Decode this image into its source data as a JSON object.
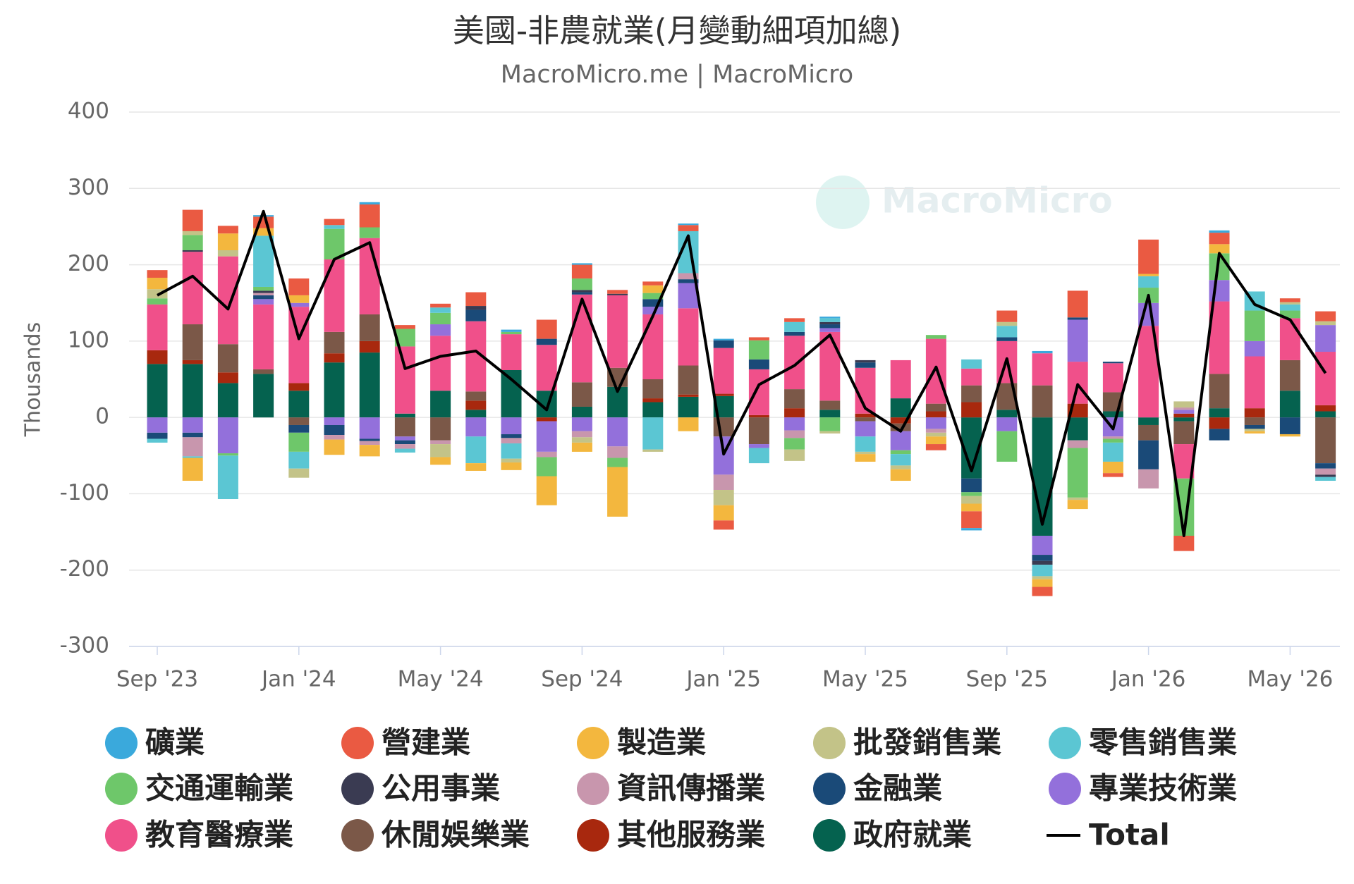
{
  "chart_data": {
    "type": "stacked-bar",
    "title": "美國-非農就業(月變動細項加總)",
    "subtitle": "MacroMicro.me | MacroMicro",
    "watermark": "MacroMicro",
    "y_axis_label": "Thousands",
    "categories": [
      "Sep '23",
      null,
      null,
      null,
      "Jan '24",
      null,
      null,
      null,
      "May '24",
      null,
      null,
      null,
      "Sep '24",
      null,
      null,
      null,
      "Jan '25",
      null,
      null,
      null,
      "May '25",
      null,
      null,
      null,
      "Sep '25",
      null,
      null,
      null,
      "Jan '26",
      null,
      null,
      null,
      "May '26",
      null
    ],
    "ylim": [
      -300,
      400
    ],
    "yticks": [
      -300,
      -200,
      -100,
      0,
      100,
      200,
      300,
      400
    ],
    "grid": true,
    "series": [
      {
        "name": "礦業",
        "color": "#3aa9dc",
        "values": [
          0,
          0,
          0,
          2,
          0,
          0,
          3,
          0,
          0,
          0,
          3,
          0,
          2,
          0,
          0,
          2,
          2,
          0,
          0,
          2,
          0,
          0,
          0,
          -3,
          0,
          3,
          0,
          0,
          0,
          0,
          3,
          0,
          0,
          0
        ]
      },
      {
        "name": "營建業",
        "color": "#ea5a42",
        "values": [
          10,
          28,
          10,
          15,
          22,
          8,
          30,
          5,
          5,
          18,
          0,
          25,
          18,
          5,
          5,
          8,
          -12,
          4,
          5,
          0,
          0,
          0,
          -8,
          -22,
          15,
          -12,
          35,
          -5,
          45,
          -20,
          15,
          0,
          5,
          13
        ]
      },
      {
        "name": "製造業",
        "color": "#f3b73e",
        "values": [
          15,
          -30,
          22,
          10,
          10,
          -20,
          -15,
          0,
          -10,
          -10,
          -10,
          -38,
          -12,
          -65,
          10,
          -18,
          -20,
          0,
          0,
          0,
          -10,
          -15,
          -10,
          -10,
          0,
          -10,
          -12,
          -15,
          3,
          0,
          12,
          -3,
          -3,
          0
        ]
      },
      {
        "name": "批發銷售業",
        "color": "#c3c388",
        "values": [
          12,
          5,
          8,
          0,
          -12,
          0,
          0,
          0,
          -17,
          0,
          -5,
          0,
          -7,
          0,
          -3,
          0,
          -20,
          0,
          -15,
          -3,
          -3,
          -5,
          -5,
          -10,
          5,
          -4,
          -3,
          0,
          0,
          8,
          0,
          -3,
          3,
          5
        ]
      },
      {
        "name": "零售銷售業",
        "color": "#5bc6d3",
        "values": [
          -5,
          -2,
          -57,
          67,
          -22,
          5,
          0,
          -5,
          7,
          -35,
          -20,
          0,
          0,
          0,
          -42,
          55,
          0,
          -20,
          13,
          5,
          -20,
          -15,
          0,
          12,
          15,
          -15,
          0,
          -25,
          15,
          0,
          0,
          25,
          8,
          -5
        ]
      },
      {
        "name": "交通運輸業",
        "color": "#6ec76a",
        "values": [
          8,
          20,
          -3,
          5,
          -25,
          40,
          14,
          23,
          15,
          0,
          3,
          -25,
          15,
          -12,
          8,
          0,
          0,
          25,
          -15,
          -18,
          0,
          -5,
          5,
          -5,
          -40,
          0,
          -65,
          -5,
          20,
          -75,
          35,
          40,
          10,
          0
        ]
      },
      {
        "name": "公用事業",
        "color": "#3a3b52",
        "values": [
          0,
          2,
          0,
          3,
          0,
          0,
          0,
          0,
          0,
          5,
          0,
          0,
          3,
          2,
          0,
          0,
          0,
          0,
          0,
          3,
          3,
          0,
          0,
          0,
          0,
          -5,
          0,
          0,
          0,
          0,
          0,
          0,
          0,
          -3
        ]
      },
      {
        "name": "資訊傳播業",
        "color": "#c896ad",
        "values": [
          0,
          -25,
          0,
          3,
          0,
          -6,
          -5,
          -6,
          -5,
          0,
          -7,
          -7,
          -8,
          -15,
          0,
          8,
          -20,
          0,
          -10,
          0,
          0,
          0,
          -5,
          0,
          0,
          0,
          -10,
          -3,
          -25,
          3,
          0,
          0,
          0,
          -8
        ]
      },
      {
        "name": "金融業",
        "color": "#1a4a78",
        "values": [
          -8,
          -6,
          0,
          5,
          -10,
          -13,
          -3,
          -5,
          0,
          15,
          -5,
          8,
          3,
          0,
          10,
          5,
          10,
          13,
          5,
          5,
          7,
          0,
          0,
          -18,
          5,
          -8,
          3,
          2,
          -38,
          0,
          -15,
          -5,
          -22,
          -7
        ]
      },
      {
        "name": "專業技術業",
        "color": "#9370db",
        "values": [
          -20,
          -20,
          -47,
          7,
          5,
          -10,
          -28,
          -5,
          15,
          -25,
          -22,
          -40,
          -18,
          -38,
          10,
          33,
          -50,
          -5,
          -17,
          5,
          -20,
          -25,
          -15,
          0,
          -18,
          -25,
          55,
          -25,
          30,
          5,
          28,
          20,
          0,
          35
        ]
      },
      {
        "name": "教育醫療業",
        "color": "#f0508a",
        "values": [
          60,
          95,
          115,
          85,
          100,
          95,
          100,
          88,
          72,
          92,
          47,
          60,
          115,
          95,
          85,
          75,
          60,
          60,
          70,
          90,
          60,
          50,
          85,
          22,
          55,
          42,
          55,
          38,
          120,
          -45,
          95,
          68,
          55,
          70
        ]
      },
      {
        "name": "休閒娛樂業",
        "color": "#7b5848",
        "values": [
          0,
          47,
          37,
          6,
          -10,
          28,
          35,
          -25,
          -30,
          12,
          0,
          0,
          32,
          25,
          25,
          38,
          -25,
          -35,
          25,
          12,
          -5,
          -10,
          10,
          22,
          35,
          42,
          0,
          25,
          -20,
          -30,
          45,
          -10,
          40,
          -60
        ]
      },
      {
        "name": "其他服務業",
        "color": "#a8280e",
        "values": [
          18,
          5,
          14,
          0,
          10,
          12,
          15,
          0,
          0,
          12,
          0,
          -5,
          0,
          0,
          5,
          3,
          3,
          3,
          12,
          0,
          5,
          -8,
          8,
          20,
          0,
          0,
          18,
          0,
          0,
          5,
          -15,
          12,
          0,
          8
        ]
      },
      {
        "name": "政府就業",
        "color": "#05624f",
        "values": [
          70,
          70,
          45,
          57,
          35,
          72,
          85,
          5,
          35,
          10,
          62,
          35,
          14,
          40,
          20,
          27,
          28,
          0,
          0,
          10,
          0,
          25,
          0,
          -80,
          10,
          -155,
          -30,
          8,
          -10,
          -5,
          12,
          0,
          35,
          8
        ]
      },
      {
        "name": "Total",
        "type": "line",
        "color": "#000000",
        "values": [
          160,
          185,
          142,
          270,
          103,
          207,
          229,
          64,
          80,
          87,
          50,
          10,
          155,
          34,
          133,
          238,
          -48,
          43,
          68,
          108,
          12,
          -18,
          66,
          -70,
          77,
          -140,
          43,
          -15,
          160,
          -155,
          215,
          148,
          128,
          58
        ]
      }
    ]
  }
}
